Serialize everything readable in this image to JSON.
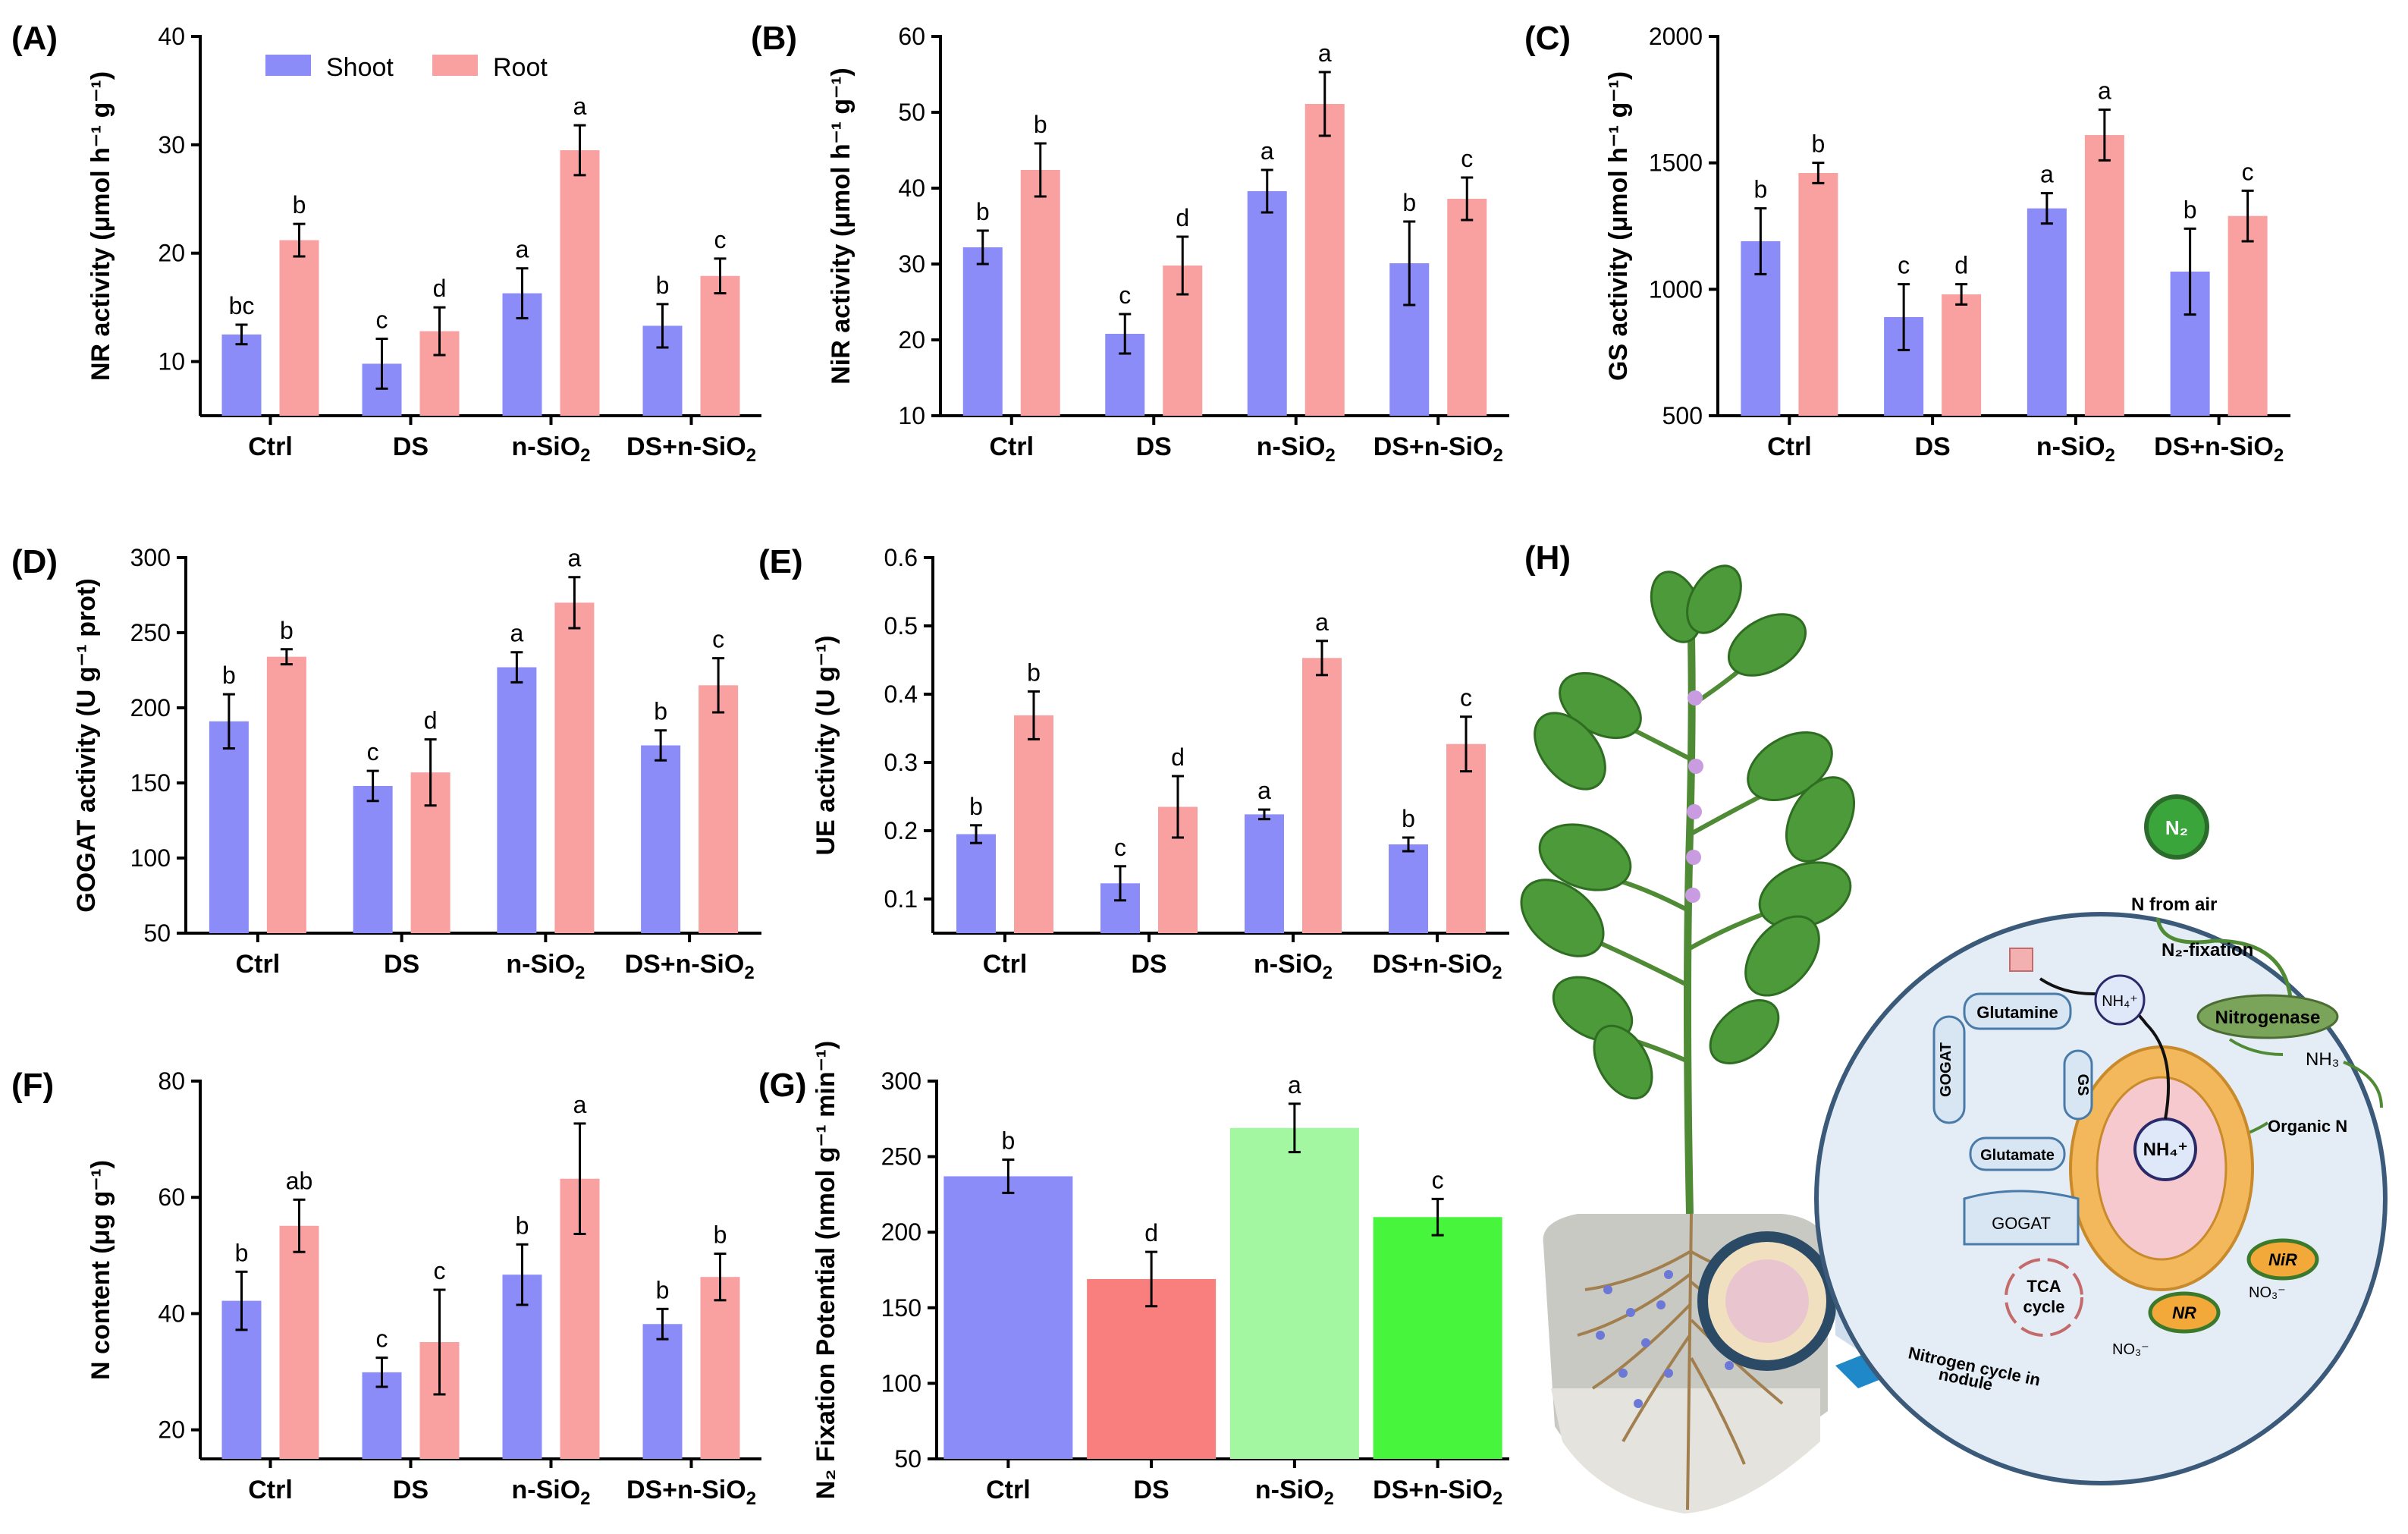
{
  "chart_data": [
    {
      "panel": "(A)",
      "type": "bar",
      "ylabel": "NR activity (μmol h⁻¹ g⁻¹)",
      "ylim": [
        5,
        40
      ],
      "yticks": [
        10,
        20,
        30,
        40
      ],
      "categories": [
        "Ctrl",
        "DS",
        "n-SiO2",
        "DS+n-SiO2"
      ],
      "series": [
        {
          "name": "Shoot",
          "color": "#8b8cf7",
          "values": [
            12.5,
            9.8,
            16.3,
            13.3
          ],
          "errors": [
            0.9,
            2.3,
            2.3,
            2.0
          ],
          "letters": [
            "bc",
            "c",
            "a",
            "b"
          ]
        },
        {
          "name": "Root",
          "color": "#f9a0a0",
          "values": [
            21.2,
            12.8,
            29.5,
            17.9
          ],
          "errors": [
            1.5,
            2.2,
            2.3,
            1.6
          ],
          "letters": [
            "b",
            "d",
            "a",
            "c"
          ]
        }
      ],
      "legend": "top"
    },
    {
      "panel": "(B)",
      "type": "bar",
      "ylabel": "NiR activity (μmol h⁻¹ g⁻¹)",
      "ylim": [
        10,
        60
      ],
      "yticks": [
        10,
        20,
        30,
        40,
        50,
        60
      ],
      "categories": [
        "Ctrl",
        "DS",
        "n-SiO2",
        "DS+n-SiO2"
      ],
      "series": [
        {
          "name": "Shoot",
          "color": "#8b8cf7",
          "values": [
            32.2,
            20.8,
            39.6,
            30.1
          ],
          "errors": [
            2.2,
            2.6,
            2.8,
            5.5
          ],
          "letters": [
            "b",
            "c",
            "a",
            "b"
          ]
        },
        {
          "name": "Root",
          "color": "#f9a0a0",
          "values": [
            42.4,
            29.8,
            51.1,
            38.6
          ],
          "errors": [
            3.5,
            3.8,
            4.2,
            2.8
          ],
          "letters": [
            "b",
            "d",
            "a",
            "c"
          ]
        }
      ]
    },
    {
      "panel": "(C)",
      "type": "bar",
      "ylabel": "GS activity (μmol h⁻¹ g⁻¹)",
      "ylim": [
        500,
        2000
      ],
      "yticks": [
        500,
        1000,
        1500,
        2000
      ],
      "categories": [
        "Ctrl",
        "DS",
        "n-SiO2",
        "DS+n-SiO2"
      ],
      "series": [
        {
          "name": "Shoot",
          "color": "#8b8cf7",
          "values": [
            1190,
            890,
            1320,
            1070
          ],
          "errors": [
            130,
            130,
            60,
            170
          ],
          "letters": [
            "b",
            "c",
            "a",
            "b"
          ]
        },
        {
          "name": "Root",
          "color": "#f9a0a0",
          "values": [
            1460,
            980,
            1610,
            1290
          ],
          "errors": [
            40,
            40,
            100,
            100
          ],
          "letters": [
            "b",
            "d",
            "a",
            "c"
          ]
        }
      ]
    },
    {
      "panel": "(D)",
      "type": "bar",
      "ylabel": "GOGAT activity (U g⁻¹ prot)",
      "ylim": [
        50,
        300
      ],
      "yticks": [
        50,
        100,
        150,
        200,
        250,
        300
      ],
      "categories": [
        "Ctrl",
        "DS",
        "n-SiO2",
        "DS+n-SiO2"
      ],
      "series": [
        {
          "name": "Shoot",
          "color": "#8b8cf7",
          "values": [
            191,
            148,
            227,
            175
          ],
          "errors": [
            18,
            10,
            10,
            10
          ],
          "letters": [
            "b",
            "c",
            "a",
            "b"
          ]
        },
        {
          "name": "Root",
          "color": "#f9a0a0",
          "values": [
            234,
            157,
            270,
            215
          ],
          "errors": [
            5,
            22,
            17,
            18
          ],
          "letters": [
            "b",
            "d",
            "a",
            "c"
          ]
        }
      ]
    },
    {
      "panel": "(E)",
      "type": "bar",
      "ylabel": "UE activity (U g⁻¹)",
      "ylim": [
        0.05,
        0.6
      ],
      "yticks": [
        0.1,
        0.2,
        0.3,
        0.4,
        0.5,
        0.6
      ],
      "categories": [
        "Ctrl",
        "DS",
        "n-SiO2",
        "DS+n-SiO2"
      ],
      "series": [
        {
          "name": "Shoot",
          "color": "#8b8cf7",
          "values": [
            0.195,
            0.123,
            0.224,
            0.18
          ],
          "errors": [
            0.013,
            0.025,
            0.007,
            0.01
          ],
          "letters": [
            "b",
            "c",
            "a",
            "b"
          ]
        },
        {
          "name": "Root",
          "color": "#f9a0a0",
          "values": [
            0.369,
            0.235,
            0.453,
            0.327
          ],
          "errors": [
            0.035,
            0.045,
            0.025,
            0.04
          ],
          "letters": [
            "b",
            "d",
            "a",
            "c"
          ]
        }
      ]
    },
    {
      "panel": "(F)",
      "type": "bar",
      "ylabel": "N content (μg g⁻¹)",
      "ylim": [
        15,
        80
      ],
      "yticks": [
        20,
        40,
        60,
        80
      ],
      "categories": [
        "Ctrl",
        "DS",
        "n-SiO2",
        "DS+n-SiO2"
      ],
      "series": [
        {
          "name": "Shoot",
          "color": "#8b8cf7",
          "values": [
            42.2,
            29.9,
            46.7,
            38.2
          ],
          "errors": [
            5.0,
            2.5,
            5.2,
            2.6
          ],
          "letters": [
            "b",
            "c",
            "b",
            "b"
          ]
        },
        {
          "name": "Root",
          "color": "#f9a0a0",
          "values": [
            55.1,
            35.1,
            63.2,
            46.3
          ],
          "errors": [
            4.5,
            9.0,
            9.5,
            4.0
          ],
          "letters": [
            "ab",
            "c",
            "a",
            "b"
          ]
        }
      ]
    },
    {
      "panel": "(G)",
      "type": "bar",
      "ylabel": "N₂ Fixation Potential (nmol g⁻¹ min⁻¹)",
      "ylim": [
        50,
        300
      ],
      "yticks": [
        50,
        100,
        150,
        200,
        250,
        300
      ],
      "categories": [
        "Ctrl",
        "DS",
        "n-SiO2",
        "DS+n-SiO2"
      ],
      "series": [
        {
          "name": "N2 fixation",
          "colors": [
            "#8b8cf7",
            "#f97f7f",
            "#a3f7a0",
            "#46f53c"
          ],
          "values": [
            237,
            169,
            269,
            210
          ],
          "errors": [
            11,
            18,
            16,
            12
          ],
          "letters": [
            "b",
            "d",
            "a",
            "c"
          ]
        }
      ]
    }
  ],
  "panel_h": {
    "label": "(H)",
    "n2": "N₂",
    "n_from_air": "N from air",
    "n2_fixation": "N₂-fixation",
    "nitrogenase": "Nitrogenase",
    "nh3": "NH₃",
    "organic_n": "Organic N",
    "glutamine": "Glutamine",
    "nh4_top": "NH₄⁺",
    "nh4_center": "NH₄⁺",
    "gs": "GS",
    "gogat_vertical": "GOGAT",
    "glutamate": "Glutamate",
    "gogat_box": "GOGAT",
    "tca1": "TCA",
    "tca2": "cycle",
    "nir": "NiR",
    "nr": "NR",
    "no3_right": "NO₃⁻",
    "no3_bottom": "NO₃⁻",
    "caption1": "Nitrogen cycle in",
    "caption2": "nodule"
  }
}
